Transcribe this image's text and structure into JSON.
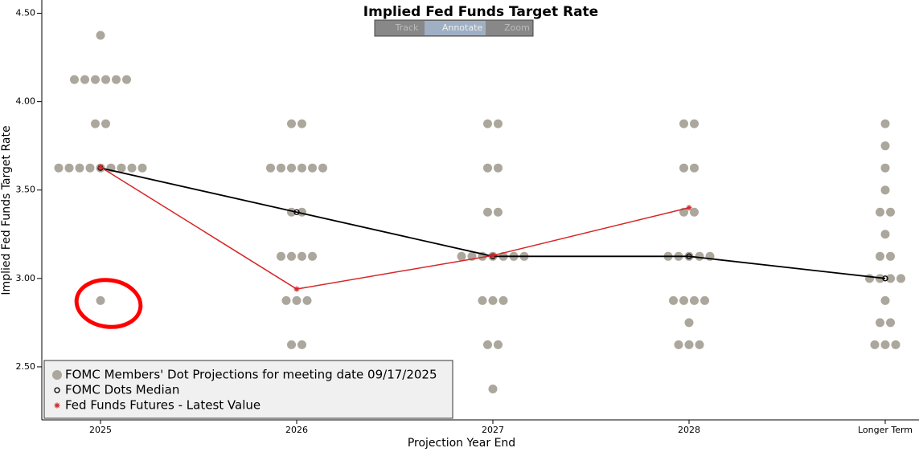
{
  "chart_data": {
    "type": "dotplot",
    "title": "Implied Fed Funds Target Rate",
    "toolbar": [
      "Track",
      "Annotate",
      "Zoom"
    ],
    "x_label": "Projection Year End",
    "y_label": "Implied Fed Funds Target Rate",
    "categories": [
      "2025",
      "2026",
      "2027",
      "2028",
      "Longer Term"
    ],
    "ylim": [
      2.2,
      4.575
    ],
    "yticks": [
      {
        "value": 2.5,
        "label": "2.50"
      },
      {
        "value": 3.0,
        "label": "3.00"
      },
      {
        "value": 3.5,
        "label": "3.50"
      },
      {
        "value": 4.0,
        "label": "4.00"
      },
      {
        "value": 4.5,
        "label": "4.50"
      }
    ],
    "series": [
      {
        "name": "FOMC Members' Dot Projections for meeting date 09/17/2025",
        "color": "#aca79c",
        "values": [
          [
            4.375,
            4.125,
            4.125,
            4.125,
            4.125,
            4.125,
            4.125,
            3.875,
            3.875,
            3.625,
            3.625,
            3.625,
            3.625,
            3.625,
            3.625,
            3.625,
            3.625,
            3.625,
            2.875
          ],
          [
            3.875,
            3.875,
            3.625,
            3.625,
            3.625,
            3.625,
            3.625,
            3.625,
            3.375,
            3.375,
            3.125,
            3.125,
            3.125,
            3.125,
            2.875,
            2.875,
            2.875,
            2.625,
            2.625
          ],
          [
            3.875,
            3.875,
            3.625,
            3.625,
            3.375,
            3.375,
            3.125,
            3.125,
            3.125,
            3.125,
            3.125,
            3.125,
            3.125,
            2.875,
            2.875,
            2.875,
            2.625,
            2.625,
            2.375
          ],
          [
            3.875,
            3.875,
            3.625,
            3.625,
            3.375,
            3.375,
            3.125,
            3.125,
            3.125,
            3.125,
            3.125,
            2.875,
            2.875,
            2.875,
            2.875,
            2.75,
            2.625,
            2.625,
            2.625
          ],
          [
            3.875,
            3.75,
            3.625,
            3.5,
            3.375,
            3.375,
            3.25,
            3.125,
            3.125,
            3.0,
            3.0,
            3.0,
            3.0,
            2.875,
            2.75,
            2.75,
            2.625,
            2.625,
            2.625
          ]
        ]
      },
      {
        "name": "FOMC Dots Median",
        "color": "#000000",
        "values": [
          3.625,
          3.375,
          3.125,
          3.125,
          3.0
        ]
      },
      {
        "name": "Fed Funds Futures - Latest Value",
        "color": "#d62728",
        "values": [
          3.63,
          2.94,
          3.13,
          3.4,
          null
        ]
      }
    ]
  }
}
